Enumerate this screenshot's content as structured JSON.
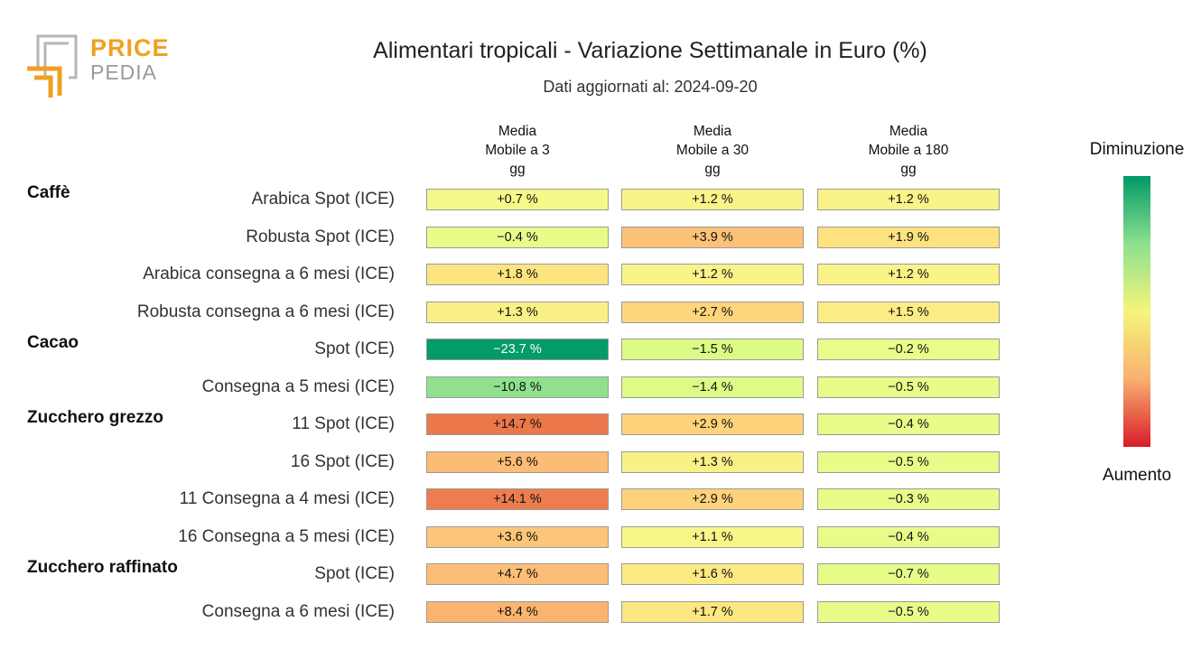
{
  "logo": {
    "line1": "PRICE",
    "line2": "PEDIA"
  },
  "chart_data": {
    "type": "heatmap",
    "title": "Alimentari tropicali - Variazione Settimanale in Euro (%)",
    "subtitle": "Dati aggiornati al: 2024-09-20",
    "columns": [
      "Media Mobile a 3 gg",
      "Media Mobile a 30 gg",
      "Media Mobile a 180 gg"
    ],
    "colorscale": {
      "low_color": "#009966",
      "mid_color": "#f5f57a",
      "high_color": "#d81b2a",
      "top_label": "Diminuzione",
      "bottom_label": "Aumento"
    },
    "groups": [
      {
        "name": "Caffè",
        "rows": [
          {
            "label": "Arabica Spot (ICE)",
            "values": [
              0.7,
              1.2,
              1.2
            ],
            "texts": [
              "+0.7 %",
              "+1.2 %",
              "+1.2 %"
            ]
          },
          {
            "label": "Robusta Spot (ICE)",
            "values": [
              -0.4,
              3.9,
              1.9
            ],
            "texts": [
              "−0.4 %",
              "+3.9 %",
              "+1.9 %"
            ]
          },
          {
            "label": "Arabica consegna a 6 mesi (ICE)",
            "values": [
              1.8,
              1.2,
              1.2
            ],
            "texts": [
              "+1.8 %",
              "+1.2 %",
              "+1.2 %"
            ]
          },
          {
            "label": "Robusta consegna a 6 mesi (ICE)",
            "values": [
              1.3,
              2.7,
              1.5
            ],
            "texts": [
              "+1.3 %",
              "+2.7 %",
              "+1.5 %"
            ]
          }
        ]
      },
      {
        "name": "Cacao",
        "rows": [
          {
            "label": "Spot (ICE)",
            "values": [
              -23.7,
              -1.5,
              -0.2
            ],
            "texts": [
              "−23.7 %",
              "−1.5 %",
              "−0.2 %"
            ]
          },
          {
            "label": "Consegna a 5 mesi (ICE)",
            "values": [
              -10.8,
              -1.4,
              -0.5
            ],
            "texts": [
              "−10.8 %",
              "−1.4 %",
              "−0.5 %"
            ]
          }
        ]
      },
      {
        "name": "Zucchero grezzo",
        "rows": [
          {
            "label": "11 Spot (ICE)",
            "values": [
              14.7,
              2.9,
              -0.4
            ],
            "texts": [
              "+14.7 %",
              "+2.9 %",
              "−0.4 %"
            ]
          },
          {
            "label": "16 Spot (ICE)",
            "values": [
              5.6,
              1.3,
              -0.5
            ],
            "texts": [
              "+5.6 %",
              "+1.3 %",
              "−0.5 %"
            ]
          },
          {
            "label": "11 Consegna a 4 mesi (ICE)",
            "values": [
              14.1,
              2.9,
              -0.3
            ],
            "texts": [
              "+14.1 %",
              "+2.9 %",
              "−0.3 %"
            ]
          },
          {
            "label": "16 Consegna a 5 mesi (ICE)",
            "values": [
              3.6,
              1.1,
              -0.4
            ],
            "texts": [
              "+3.6 %",
              "+1.1 %",
              "−0.4 %"
            ]
          }
        ]
      },
      {
        "name": "Zucchero raffinato",
        "rows": [
          {
            "label": "Spot (ICE)",
            "values": [
              4.7,
              1.6,
              -0.7
            ],
            "texts": [
              "+4.7 %",
              "+1.6 %",
              "−0.7 %"
            ]
          },
          {
            "label": "Consegna a 6 mesi (ICE)",
            "values": [
              8.4,
              1.7,
              -0.5
            ],
            "texts": [
              "+8.4 %",
              "+1.7 %",
              "−0.5 %"
            ]
          }
        ]
      }
    ]
  }
}
